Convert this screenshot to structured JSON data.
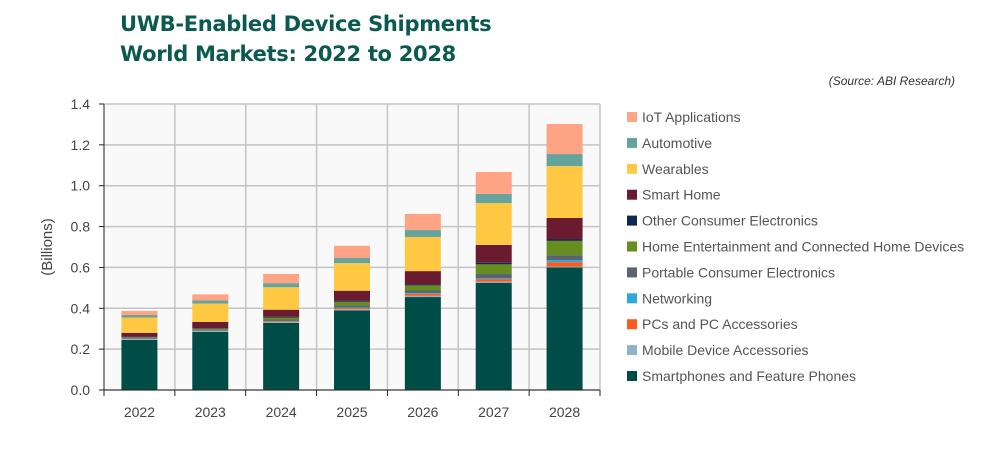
{
  "chart_data": {
    "type": "bar",
    "stacked": true,
    "title": "UWB-Enabled Device Shipments",
    "subtitle": "World Markets: 2022 to 2028",
    "source": "(Source: ABI Research)",
    "xlabel": "",
    "ylabel": "(Billions)",
    "ylim": [
      0,
      1.4
    ],
    "yticks": [
      "0.0",
      "0.2",
      "0.4",
      "0.6",
      "0.8",
      "1.0",
      "1.2",
      "1.4"
    ],
    "grid": true,
    "legend_position": "right",
    "categories": [
      "2022",
      "2023",
      "2024",
      "2025",
      "2026",
      "2027",
      "2028"
    ],
    "series": [
      {
        "name": "Smartphones and Feature Phones",
        "color": "#004d47",
        "values": [
          0.245,
          0.284,
          0.328,
          0.39,
          0.455,
          0.525,
          0.6
        ]
      },
      {
        "name": "Mobile Device Accessories",
        "color": "#8db4c8",
        "values": [
          0.004,
          0.004,
          0.004,
          0.005,
          0.006,
          0.005,
          0.004
        ]
      },
      {
        "name": "PCs and PC Accessories",
        "color": "#ff5a1e",
        "values": [
          0.001,
          0.002,
          0.004,
          0.006,
          0.01,
          0.013,
          0.022
        ]
      },
      {
        "name": "Networking",
        "color": "#2fa8e0",
        "values": [
          0.001,
          0.001,
          0.002,
          0.003,
          0.004,
          0.005,
          0.01
        ]
      },
      {
        "name": "Portable Consumer Electronics",
        "color": "#5a6570",
        "values": [
          0.004,
          0.006,
          0.007,
          0.01,
          0.012,
          0.02,
          0.024
        ]
      },
      {
        "name": "Home Entertainment and Connected Home Devices",
        "color": "#668e1e",
        "values": [
          0.003,
          0.004,
          0.01,
          0.018,
          0.025,
          0.047,
          0.07
        ]
      },
      {
        "name": "Other Consumer Electronics",
        "color": "#0f2850",
        "values": [
          0.002,
          0.002,
          0.003,
          0.004,
          0.005,
          0.008,
          0.009
        ]
      },
      {
        "name": "Smart Home",
        "color": "#6b1b30",
        "values": [
          0.02,
          0.03,
          0.035,
          0.05,
          0.065,
          0.087,
          0.103
        ]
      },
      {
        "name": "Wearables",
        "color": "#ffc842",
        "values": [
          0.075,
          0.09,
          0.11,
          0.135,
          0.167,
          0.205,
          0.254
        ]
      },
      {
        "name": "Automotive",
        "color": "#65a39d",
        "values": [
          0.012,
          0.015,
          0.02,
          0.025,
          0.034,
          0.045,
          0.059
        ]
      },
      {
        "name": "IoT Applications",
        "color": "#ffa385",
        "values": [
          0.02,
          0.03,
          0.045,
          0.06,
          0.079,
          0.107,
          0.147
        ]
      }
    ]
  }
}
